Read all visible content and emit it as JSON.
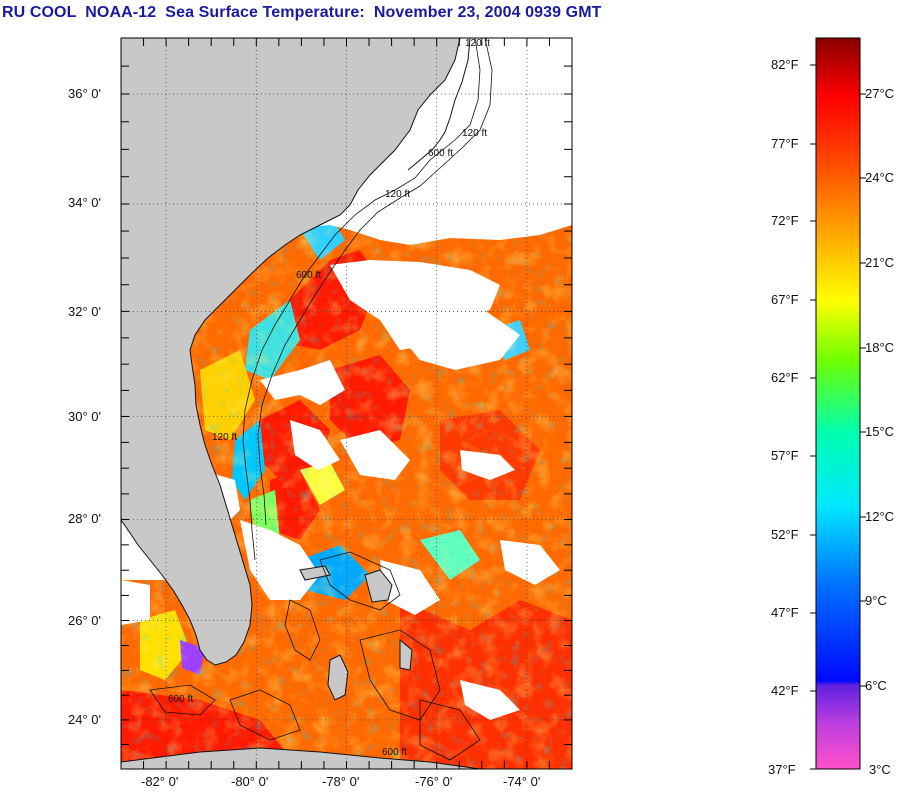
{
  "title": "RU COOL  NOAA-12  Sea Surface Temperature:  November 23, 2004 0939 GMT",
  "map": {
    "lat_labels": [
      "36° 0'",
      "34° 0'",
      "32° 0'",
      "30° 0'",
      "28° 0'",
      "26° 0'",
      "24° 0'"
    ],
    "lat_values": [
      36,
      34,
      32,
      30,
      28,
      26,
      24
    ],
    "lon_labels": [
      "-82° 0'",
      "-80° 0'",
      "-78° 0'",
      "-76° 0'",
      "-74° 0'"
    ],
    "lon_values": [
      -82,
      -80,
      -78,
      -76,
      -74
    ],
    "lat_range": [
      23.0,
      37.0
    ],
    "lon_range": [
      -83.0,
      -73.0
    ],
    "land_color": "#c8c8c8",
    "cloud_color": "#ffffff",
    "isobath_labels": [
      "120 ft",
      "120 ft",
      "600 ft",
      "120 ft",
      "600 ft",
      "120 ft",
      "600 ft",
      "600 ft"
    ]
  },
  "colorbar": {
    "fahrenheit_labels": [
      "82°F",
      "77°F",
      "72°F",
      "67°F",
      "62°F",
      "57°F",
      "52°F",
      "47°F",
      "42°F",
      "37°F"
    ],
    "celsius_labels": [
      "27°C",
      "24°C",
      "21°C",
      "18°C",
      "15°C",
      "12°C",
      "9°C",
      "6°C",
      "3°C"
    ],
    "colors": [
      "#ff40c0",
      "#8020e0",
      "#0010ff",
      "#0090ff",
      "#00e0ff",
      "#00ff90",
      "#80ff00",
      "#ffff00",
      "#ffa000",
      "#ff5000",
      "#ff0000",
      "#a00000"
    ]
  }
}
